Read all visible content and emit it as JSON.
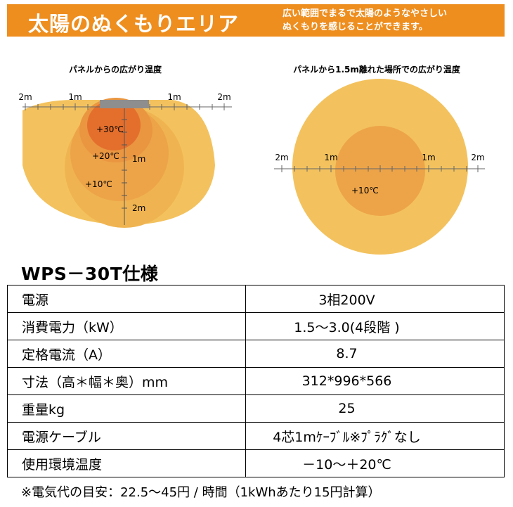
{
  "banner": {
    "title": "太陽のぬくもりエリア",
    "line1": "広い範囲でまるで太陽のようなやさしい",
    "line2": "ぬくもりを感じることができます。",
    "color": "#ee8e1f"
  },
  "diagrams": {
    "left": {
      "caption": "パネルからの広がり温度",
      "scale": [
        "2m",
        "1m",
        "1m",
        "2m"
      ],
      "zones": [
        "+30℃",
        "+20℃",
        "+10℃"
      ],
      "depth": [
        "1m",
        "2m"
      ]
    },
    "right": {
      "caption": "パネルから1.5m離れた場所での広がり温度",
      "scale": [
        "2m",
        "1m",
        "1m",
        "2m"
      ],
      "zone": "+10℃"
    },
    "colors": {
      "outer": "#f3c25e",
      "mid": "#eda94a",
      "inner": "#e98e3c",
      "core": "#e46f2d"
    }
  },
  "spec": {
    "title": "WPS－30T仕様",
    "rows": [
      {
        "label": "電源",
        "value": "3相200V"
      },
      {
        "label": "消費電力（kW）",
        "value": "1.5～3.0(4段階 )"
      },
      {
        "label": "定格電流（A）",
        "value": "8.7"
      },
      {
        "label": "寸法（高＊幅＊奥）mm",
        "value": "312*996*566"
      },
      {
        "label": "重量kg",
        "value": "25"
      },
      {
        "label": "電源ケーブル",
        "value": "4芯1mｹｰﾌﾞﾙ※ﾌﾟﾗｸﾞなし"
      },
      {
        "label": "使用環境温度",
        "value": "－10～＋20℃"
      }
    ]
  },
  "note": "※電気代の目安：22.5～45円 / 時間（1kWhあたり15円計算）"
}
